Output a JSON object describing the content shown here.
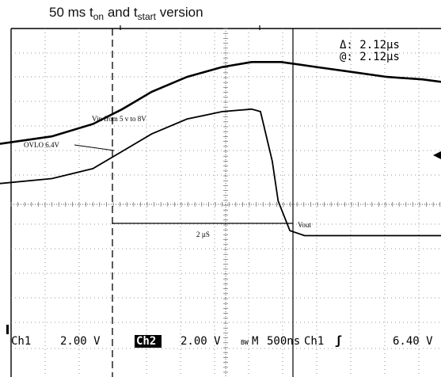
{
  "title": {
    "prefix": "50 ms t",
    "sub1": "on",
    "mid": " and t",
    "sub2": "start",
    "suffix": " version"
  },
  "readout": {
    "delta": "Δ: 2.12µs",
    "at": "@: 2.12µs"
  },
  "status": {
    "ch1": "Ch1",
    "ch1_scale": "2.00 V",
    "ch2": "Ch2",
    "ch2_scale": "2.00 V",
    "bw": "BW",
    "m": "M",
    "timebase": "500ns",
    "trig_src": "Ch1",
    "trig_slope": "ʃ",
    "trig_level": "6.40 V"
  },
  "chart_data": {
    "type": "line",
    "x_unit": "µs",
    "xlim": [
      -2.38,
      5.12
    ],
    "ylim": [
      -2.3,
      12.9
    ],
    "series": [
      {
        "x": [
          -2.38,
          -1.5,
          -0.8,
          -0.3,
          0.2,
          0.8,
          1.4,
          1.9,
          2.4,
          3.0,
          3.6,
          4.2,
          4.8,
          5.12
        ],
        "y": [
          7.1,
          7.4,
          7.9,
          8.5,
          9.2,
          9.8,
          10.2,
          10.4,
          10.4,
          10.2,
          10.0,
          9.8,
          9.7,
          9.6
        ]
      },
      {
        "x": [
          -2.38,
          -1.5,
          -0.8,
          -0.3,
          0.2,
          0.8,
          1.4,
          1.9,
          2.05,
          2.25,
          2.35,
          2.55,
          2.8,
          3.2,
          4.0,
          5.12
        ],
        "y": [
          5.5,
          5.7,
          6.1,
          6.8,
          7.5,
          8.1,
          8.4,
          8.5,
          8.4,
          6.4,
          4.8,
          3.6,
          3.4,
          3.4,
          3.4,
          3.4
        ]
      }
    ]
  },
  "annotations": {
    "vin": "Vin from 5 v to 8V",
    "ovlo": "OVLO 6.4V",
    "interval": "2 µS",
    "vout": "Vout"
  }
}
